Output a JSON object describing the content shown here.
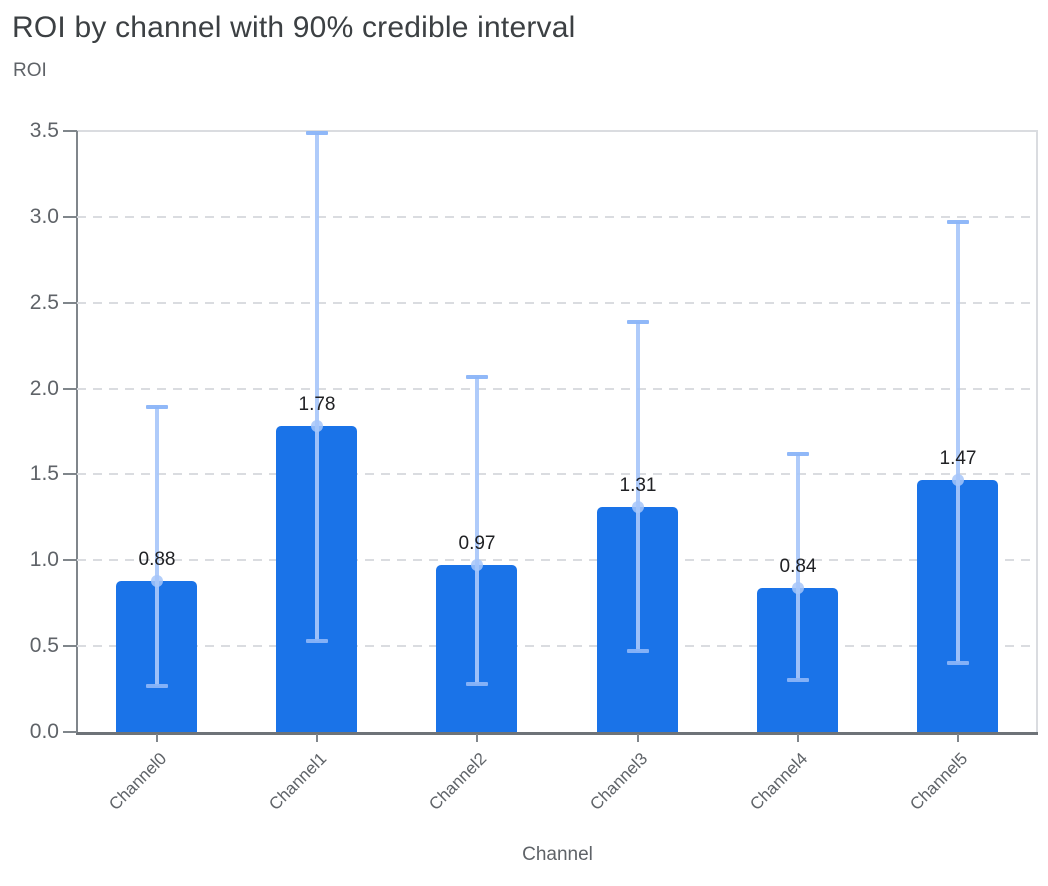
{
  "page": {
    "background": "#ffffff"
  },
  "chart_data": {
    "type": "bar",
    "title": "ROI by channel with 90% credible interval",
    "ylabel": "ROI",
    "xlabel": "Channel",
    "categories": [
      "Channel0",
      "Channel1",
      "Channel2",
      "Channel3",
      "Channel4",
      "Channel5"
    ],
    "series": [
      {
        "name": "ROI",
        "values": [
          0.88,
          1.78,
          0.97,
          1.31,
          0.84,
          1.47
        ]
      }
    ],
    "bar_labels": [
      "0.88",
      "1.78",
      "0.97",
      "1.31",
      "0.84",
      "1.47"
    ],
    "error_bars": {
      "label": "90% credible interval",
      "lower": [
        0.27,
        0.53,
        0.28,
        0.47,
        0.3,
        0.4
      ],
      "upper": [
        1.89,
        3.49,
        2.07,
        2.39,
        1.62,
        2.97
      ]
    },
    "ylim": [
      0,
      3.5
    ],
    "yticks": [
      "0.0",
      "0.5",
      "1.0",
      "1.5",
      "2.0",
      "2.5",
      "3.0",
      "3.5"
    ],
    "legend": "none",
    "grid": "horizontal-dashed",
    "colors": {
      "bar": "#1a73e8",
      "error_bar": "#a8c7fa",
      "error_bar_cap": "#8ab4f8",
      "gridline": "#dadce0",
      "axis": "#80868b",
      "title_text": "#3c4043",
      "tick_text": "#5f6368",
      "value_label_text": "#202124",
      "background": "#ffffff"
    }
  }
}
